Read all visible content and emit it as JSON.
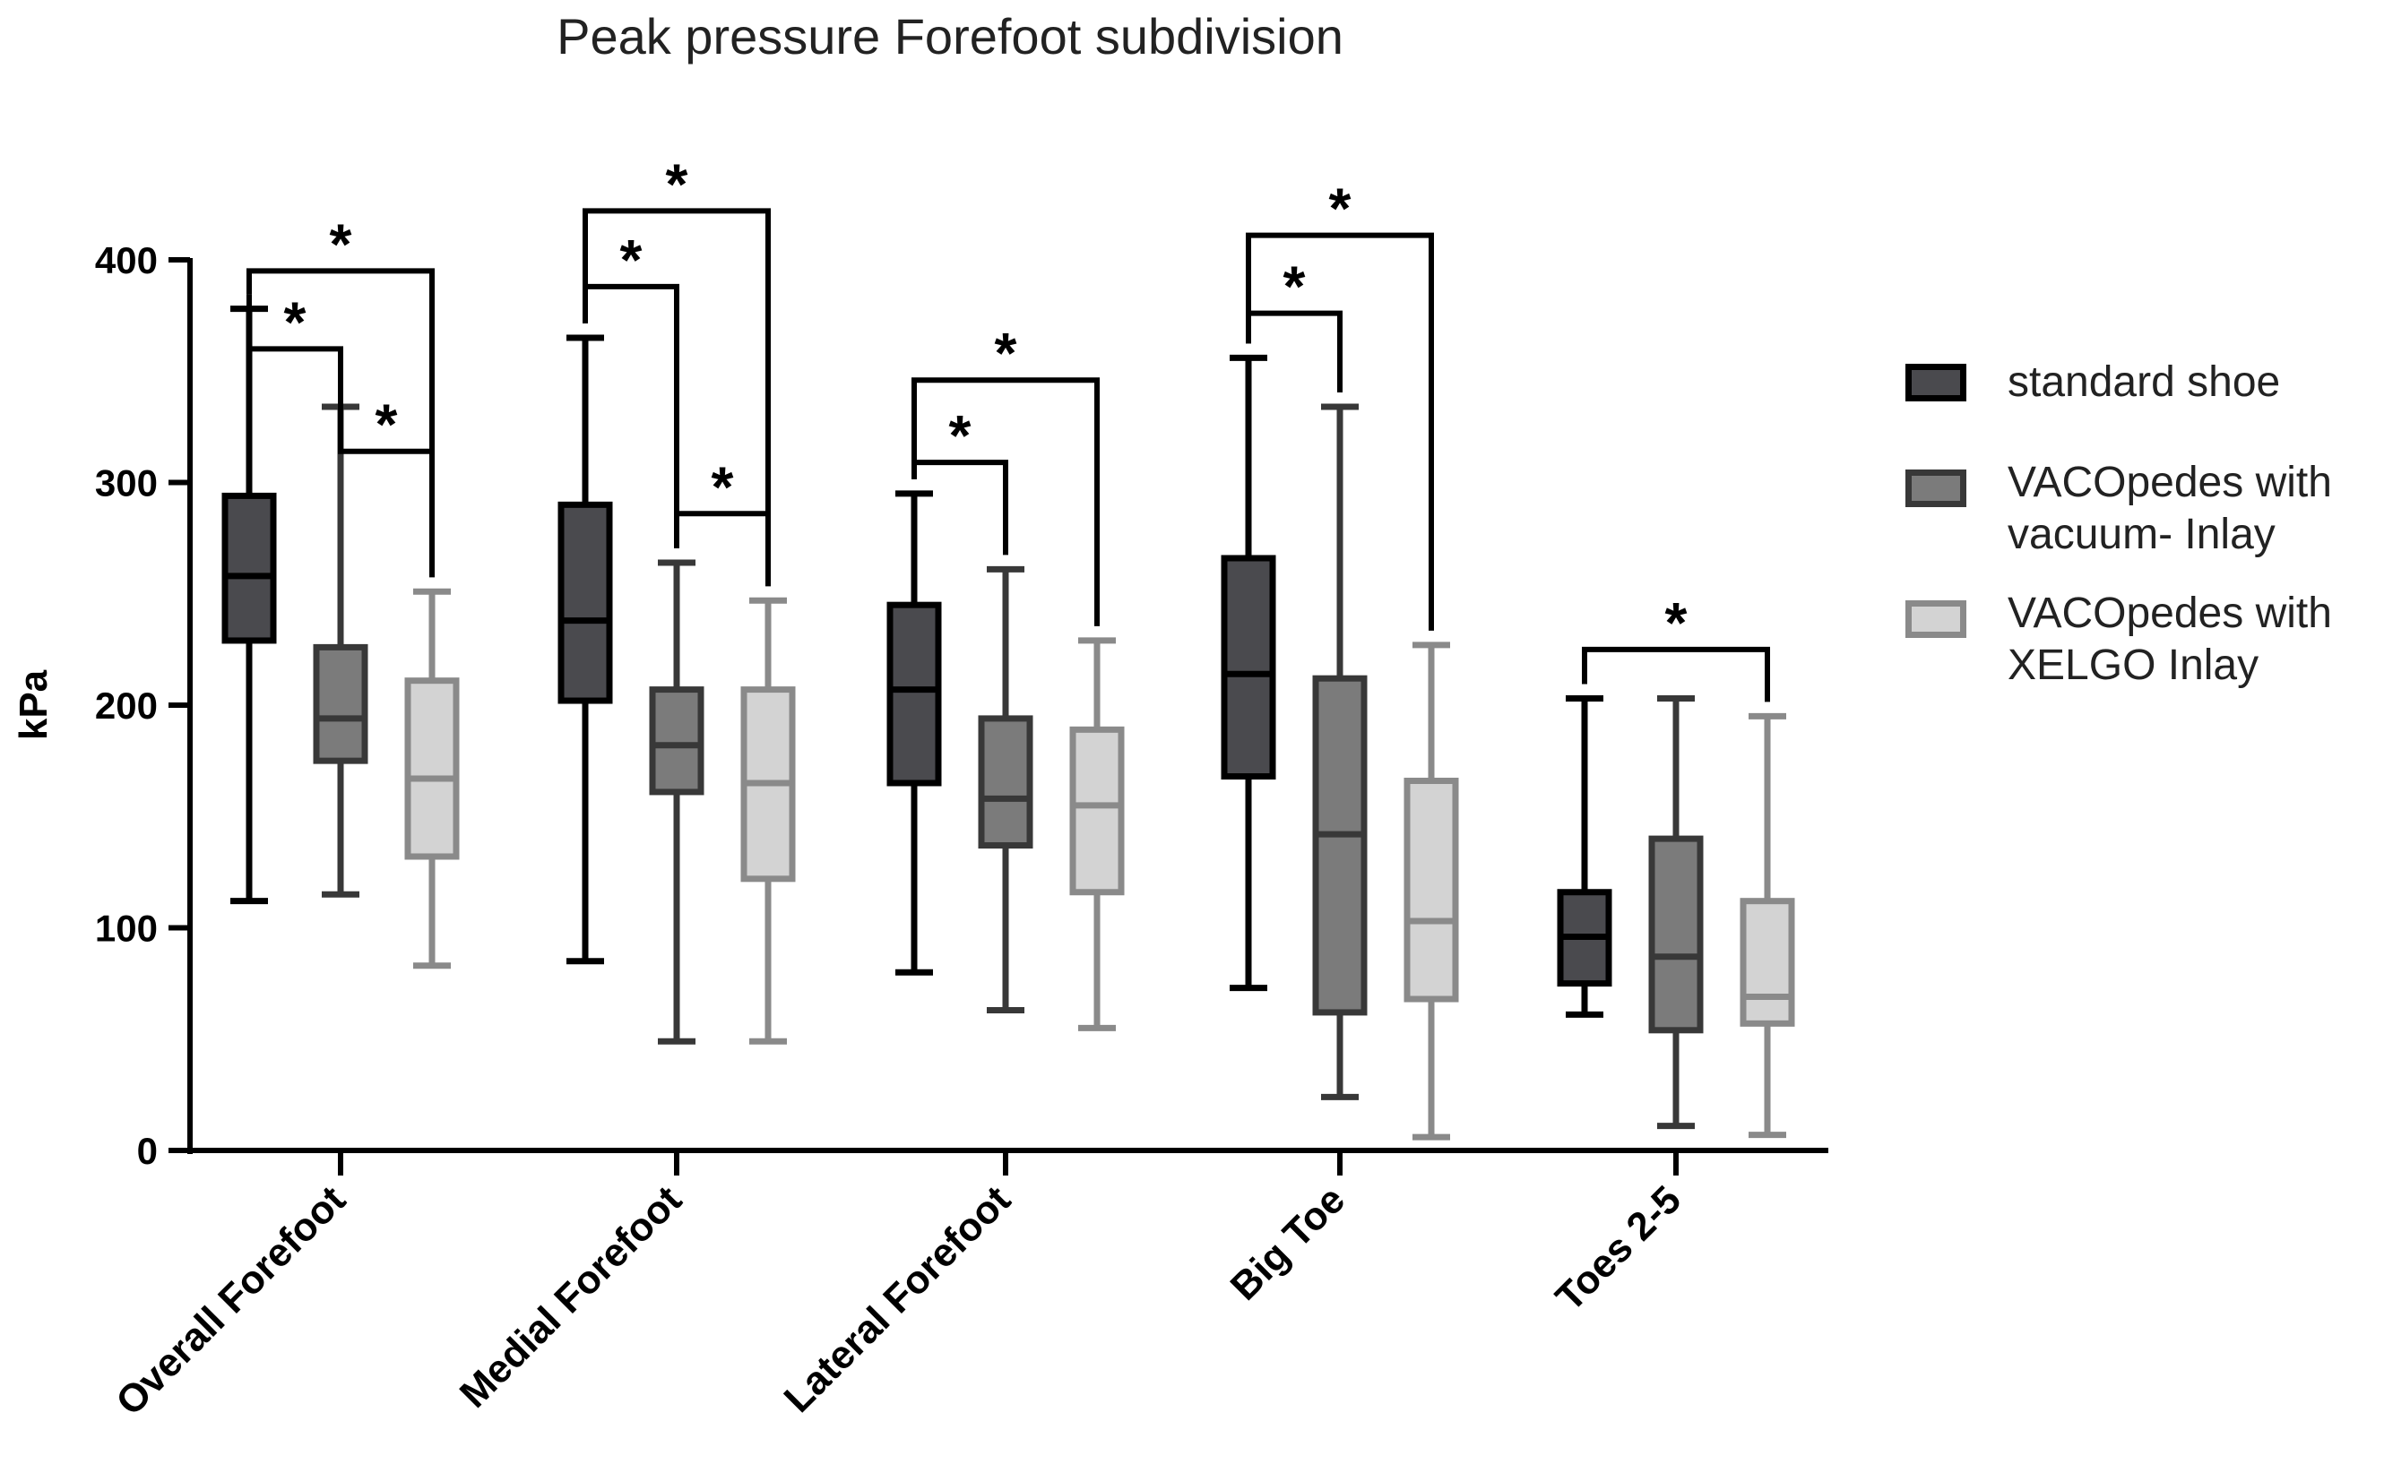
{
  "chart_data": {
    "type": "box",
    "title": "Peak pressure Forefoot subdivision",
    "xlabel": "",
    "ylabel": "kPa",
    "ylim": [
      0,
      400
    ],
    "yticks": [
      0,
      100,
      200,
      300,
      400
    ],
    "categories": [
      "Overall Forefoot",
      "Medial Forefoot",
      "Lateral Forefoot",
      "Big Toe",
      "Toes 2-5"
    ],
    "series": [
      {
        "name": "standard shoe",
        "fill": "#4a4a4e",
        "stroke": "#000000",
        "boxes": [
          {
            "min": 112,
            "q1": 229,
            "median": 258,
            "q3": 294,
            "max": 378
          },
          {
            "min": 85,
            "q1": 202,
            "median": 238,
            "q3": 290,
            "max": 365
          },
          {
            "min": 80,
            "q1": 165,
            "median": 207,
            "q3": 245,
            "max": 295
          },
          {
            "min": 73,
            "q1": 168,
            "median": 214,
            "q3": 266,
            "max": 356
          },
          {
            "min": 61,
            "q1": 75,
            "median": 96,
            "q3": 116,
            "max": 203
          }
        ]
      },
      {
        "name": "VACOpedes with vacuum- Inlay",
        "fill": "#7b7b7b",
        "stroke": "#383838",
        "boxes": [
          {
            "min": 115,
            "q1": 175,
            "median": 194,
            "q3": 226,
            "max": 334
          },
          {
            "min": 49,
            "q1": 161,
            "median": 182,
            "q3": 207,
            "max": 264
          },
          {
            "min": 63,
            "q1": 137,
            "median": 158,
            "q3": 194,
            "max": 261
          },
          {
            "min": 24,
            "q1": 62,
            "median": 142,
            "q3": 212,
            "max": 334
          },
          {
            "min": 11,
            "q1": 54,
            "median": 87,
            "q3": 140,
            "max": 203
          }
        ]
      },
      {
        "name": "VACOpedes with XELGO Inlay",
        "fill": "#d3d3d3",
        "stroke": "#8a8a8a",
        "boxes": [
          {
            "min": 83,
            "q1": 132,
            "median": 167,
            "q3": 211,
            "max": 251
          },
          {
            "min": 49,
            "q1": 122,
            "median": 165,
            "q3": 207,
            "max": 247
          },
          {
            "min": 55,
            "q1": 116,
            "median": 155,
            "q3": 189,
            "max": 229
          },
          {
            "min": 6,
            "q1": 68,
            "median": 103,
            "q3": 166,
            "max": 227
          },
          {
            "min": 7,
            "q1": 57,
            "median": 69,
            "q3": 112,
            "max": 195
          }
        ]
      }
    ],
    "significance": [
      {
        "category": 0,
        "from": 0,
        "to": 1,
        "level": 360,
        "label": "*"
      },
      {
        "category": 0,
        "from": 0,
        "to": 2,
        "level": 395,
        "label": "*"
      },
      {
        "category": 0,
        "from": 1,
        "to": 2,
        "level": 314,
        "label": "*"
      },
      {
        "category": 1,
        "from": 0,
        "to": 1,
        "level": 388,
        "label": "*"
      },
      {
        "category": 1,
        "from": 0,
        "to": 2,
        "level": 422,
        "label": "*"
      },
      {
        "category": 1,
        "from": 1,
        "to": 2,
        "level": 286,
        "label": "*"
      },
      {
        "category": 2,
        "from": 0,
        "to": 1,
        "level": 309,
        "label": "*"
      },
      {
        "category": 2,
        "from": 0,
        "to": 2,
        "level": 346,
        "label": "*"
      },
      {
        "category": 3,
        "from": 0,
        "to": 1,
        "level": 376,
        "label": "*"
      },
      {
        "category": 3,
        "from": 0,
        "to": 2,
        "level": 411,
        "label": "*"
      },
      {
        "category": 4,
        "from": 0,
        "to": 2,
        "level": 225,
        "label": "*"
      }
    ]
  },
  "legend": {
    "items": [
      {
        "label": "standard shoe",
        "color": "#4a4a4e"
      },
      {
        "label": "VACOpedes with vacuum- Inlay",
        "color": "#7b7b7b"
      },
      {
        "label": "VACOpedes with XELGO Inlay",
        "color": "#d3d3d3"
      }
    ]
  }
}
